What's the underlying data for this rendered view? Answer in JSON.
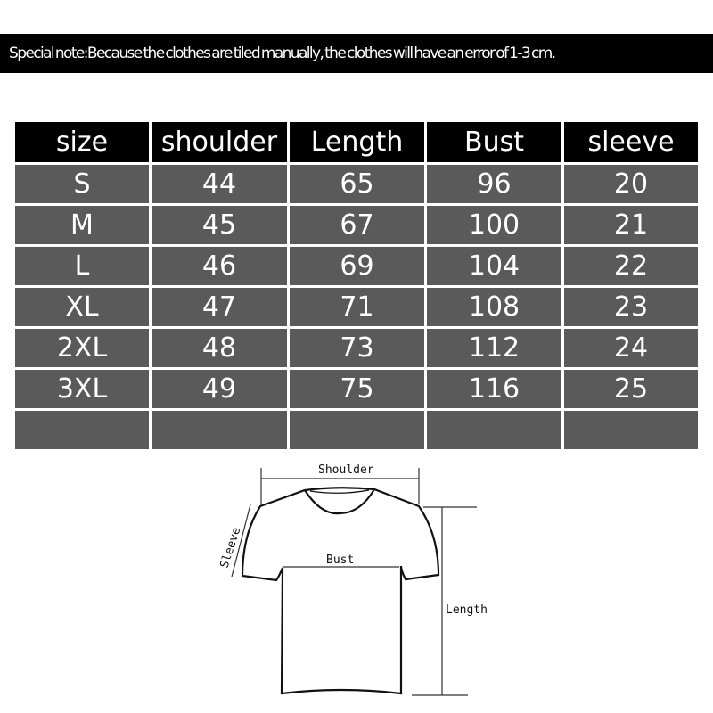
{
  "note": "Special note:Because the clothes are tiled manually, the clothes will have an error of 1-3 cm.",
  "table": {
    "headers": [
      "size",
      "shoulder",
      "Length",
      "Bust",
      "sleeve"
    ],
    "rows": [
      [
        "S",
        "44",
        "65",
        "96",
        "20"
      ],
      [
        "M",
        "45",
        "67",
        "100",
        "21"
      ],
      [
        "L",
        "46",
        "69",
        "104",
        "22"
      ],
      [
        "XL",
        "47",
        "71",
        "108",
        "23"
      ],
      [
        "2XL",
        "48",
        "73",
        "112",
        "24"
      ],
      [
        "3XL",
        "49",
        "75",
        "116",
        "25"
      ],
      [
        "",
        "",
        "",
        "",
        ""
      ]
    ]
  },
  "diagram": {
    "shoulder": "Shoulder",
    "sleeve": "Sleeve",
    "bust": "Bust",
    "length": "Length"
  }
}
